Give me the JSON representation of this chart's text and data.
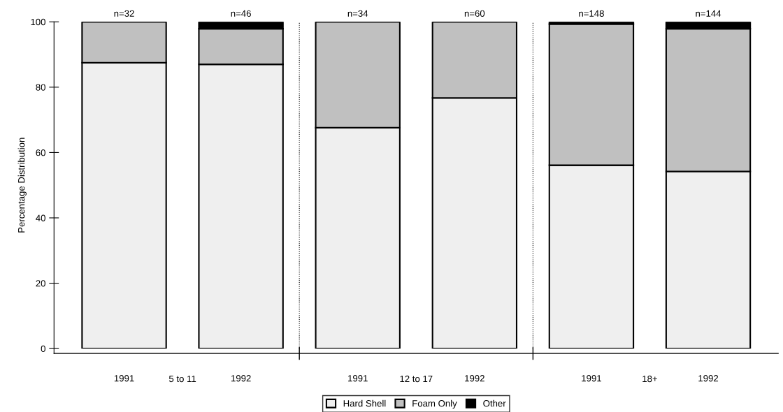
{
  "chart_data": {
    "type": "bar",
    "stacked": true,
    "ylabel": "Percentage Distribution",
    "categories": [
      "1991",
      "1992",
      "1991",
      "1992",
      "1991",
      "1992"
    ],
    "series": [
      {
        "name": "Hard Shell",
        "color": "#efefef",
        "values": [
          87.5,
          87.0,
          67.6,
          76.7,
          56.1,
          54.2
        ]
      },
      {
        "name": "Foam Only",
        "color": "#c0c0c0",
        "values": [
          12.5,
          10.9,
          32.4,
          23.3,
          43.2,
          43.7
        ]
      },
      {
        "name": "Other",
        "color": "#000000",
        "values": [
          0,
          2.1,
          0,
          0,
          0.7,
          2.1
        ]
      }
    ],
    "ylim": [
      0,
      100
    ],
    "yticks": [
      0,
      20,
      40,
      60,
      80,
      100
    ],
    "annotations": [
      "n=32",
      "n=46",
      "n=34",
      "n=60",
      "n=148",
      "n=144",
      "5 to 11",
      "12 to 17",
      "18+"
    ],
    "legend": "bottom",
    "grid": false
  }
}
